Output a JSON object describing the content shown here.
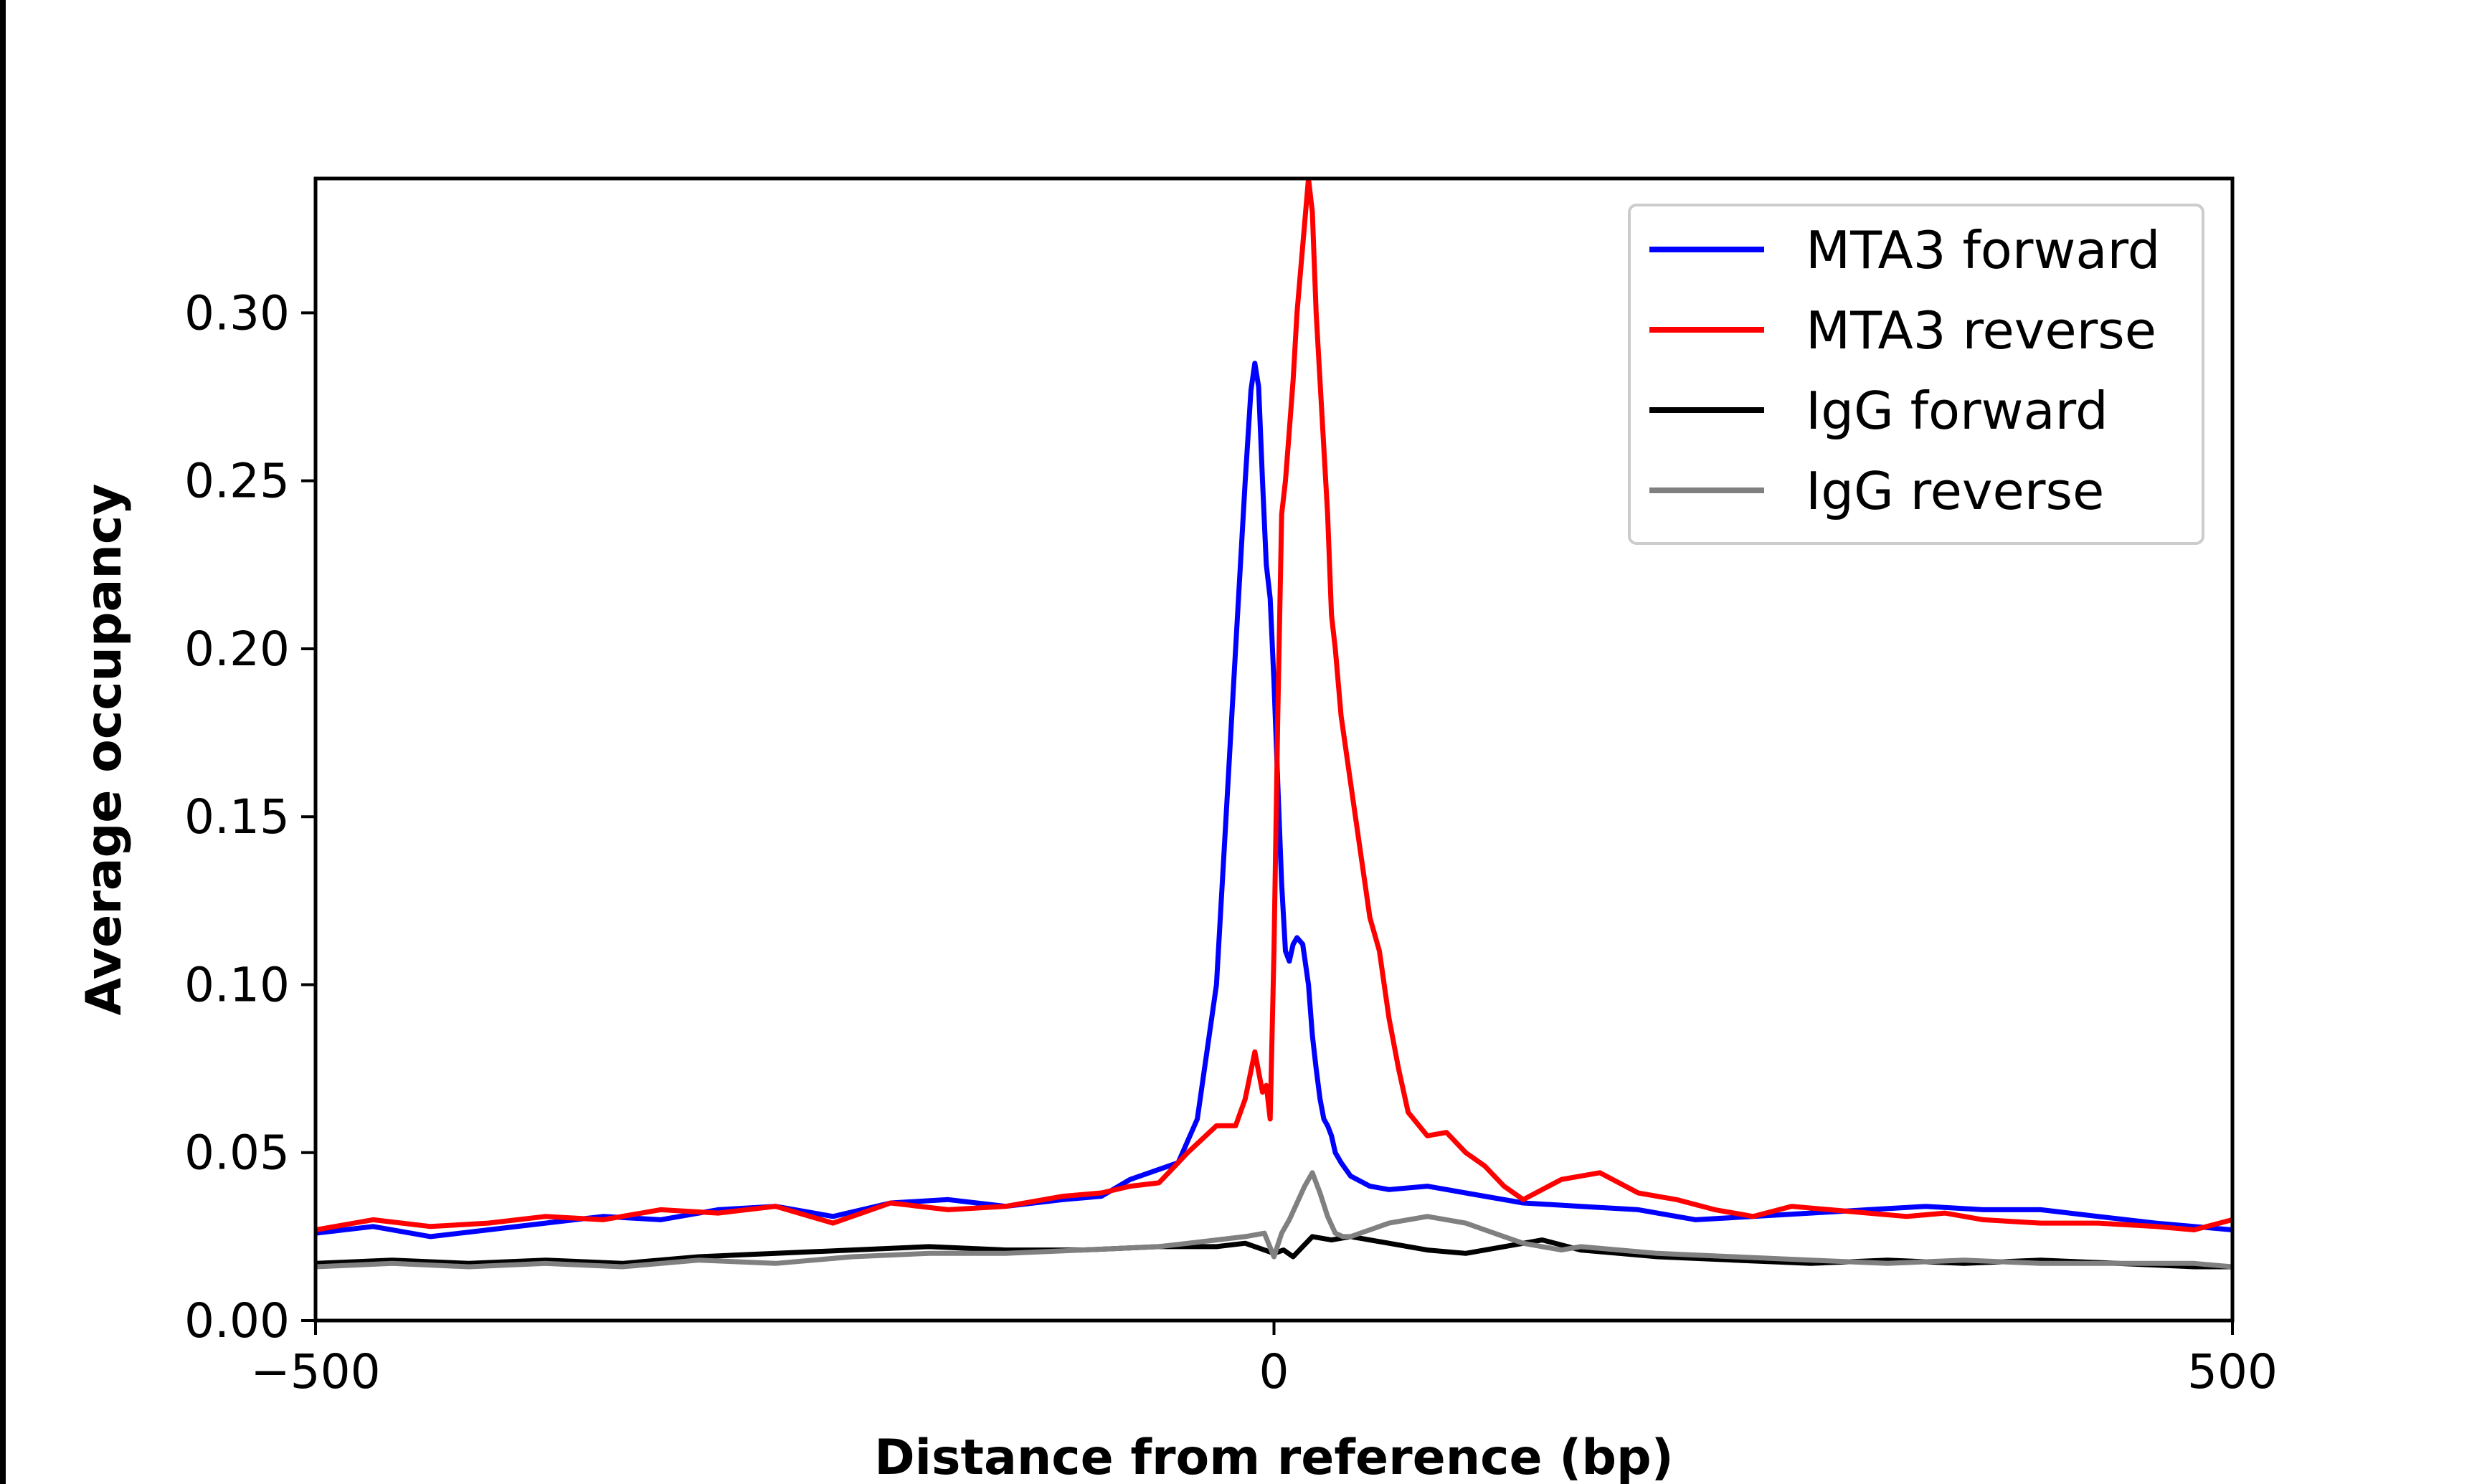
{
  "chart_data": {
    "type": "line",
    "title": "",
    "xlabel": "Distance from reference (bp)",
    "ylabel": "Average occupancy",
    "xlim": [
      -500,
      500
    ],
    "ylim": [
      0,
      0.34
    ],
    "x_ticks": [
      -500,
      0,
      500
    ],
    "x_tick_labels": [
      "−500",
      "0",
      "500"
    ],
    "y_ticks": [
      0.0,
      0.05,
      0.1,
      0.15,
      0.2,
      0.25,
      0.3
    ],
    "y_tick_labels": [
      "0.00",
      "0.05",
      "0.10",
      "0.15",
      "0.20",
      "0.25",
      "0.30"
    ],
    "grid": false,
    "legend_position": "top-right",
    "series": [
      {
        "name": "MTA3 forward",
        "color": "#0000ff",
        "x": [
          -500,
          -470,
          -440,
          -410,
          -380,
          -350,
          -320,
          -290,
          -260,
          -230,
          -200,
          -170,
          -140,
          -110,
          -90,
          -75,
          -60,
          -50,
          -40,
          -30,
          -25,
          -20,
          -15,
          -12,
          -10,
          -8,
          -6,
          -4,
          -2,
          0,
          2,
          4,
          6,
          8,
          10,
          12,
          15,
          18,
          20,
          22,
          24,
          26,
          28,
          30,
          32,
          35,
          40,
          50,
          60,
          80,
          100,
          130,
          160,
          190,
          220,
          250,
          280,
          310,
          340,
          370,
          400,
          430,
          460,
          480,
          500
        ],
        "y": [
          0.026,
          0.028,
          0.025,
          0.027,
          0.029,
          0.031,
          0.03,
          0.033,
          0.034,
          0.031,
          0.035,
          0.036,
          0.034,
          0.036,
          0.037,
          0.042,
          0.045,
          0.047,
          0.06,
          0.1,
          0.15,
          0.2,
          0.25,
          0.277,
          0.285,
          0.278,
          0.25,
          0.225,
          0.215,
          0.19,
          0.16,
          0.13,
          0.11,
          0.107,
          0.112,
          0.114,
          0.112,
          0.1,
          0.085,
          0.075,
          0.066,
          0.06,
          0.058,
          0.055,
          0.05,
          0.047,
          0.043,
          0.04,
          0.039,
          0.04,
          0.038,
          0.035,
          0.034,
          0.033,
          0.03,
          0.031,
          0.032,
          0.033,
          0.034,
          0.033,
          0.033,
          0.031,
          0.029,
          0.028,
          0.027
        ]
      },
      {
        "name": "MTA3 reverse",
        "color": "#ff0000",
        "x": [
          -500,
          -470,
          -440,
          -410,
          -380,
          -350,
          -320,
          -290,
          -260,
          -230,
          -200,
          -170,
          -140,
          -110,
          -90,
          -75,
          -60,
          -45,
          -30,
          -20,
          -15,
          -10,
          -6,
          -4,
          -2,
          0,
          2,
          4,
          6,
          8,
          10,
          12,
          15,
          18,
          20,
          22,
          25,
          28,
          30,
          32,
          35,
          40,
          45,
          50,
          55,
          60,
          65,
          70,
          80,
          90,
          100,
          110,
          120,
          130,
          150,
          170,
          190,
          210,
          230,
          250,
          270,
          290,
          310,
          330,
          350,
          370,
          400,
          430,
          460,
          480,
          500
        ],
        "y": [
          0.027,
          0.03,
          0.028,
          0.029,
          0.031,
          0.03,
          0.033,
          0.032,
          0.034,
          0.029,
          0.035,
          0.033,
          0.034,
          0.037,
          0.038,
          0.04,
          0.041,
          0.05,
          0.058,
          0.058,
          0.066,
          0.08,
          0.068,
          0.07,
          0.06,
          0.11,
          0.18,
          0.24,
          0.25,
          0.265,
          0.28,
          0.3,
          0.32,
          0.34,
          0.33,
          0.3,
          0.27,
          0.24,
          0.21,
          0.2,
          0.18,
          0.16,
          0.14,
          0.12,
          0.11,
          0.09,
          0.075,
          0.062,
          0.055,
          0.056,
          0.05,
          0.046,
          0.04,
          0.036,
          0.042,
          0.044,
          0.038,
          0.036,
          0.033,
          0.031,
          0.034,
          0.033,
          0.032,
          0.031,
          0.032,
          0.03,
          0.029,
          0.029,
          0.028,
          0.027,
          0.03
        ]
      },
      {
        "name": "IgG forward",
        "color": "#000000",
        "x": [
          -500,
          -460,
          -420,
          -380,
          -340,
          -300,
          -260,
          -220,
          -180,
          -140,
          -100,
          -60,
          -30,
          -15,
          -5,
          0,
          5,
          10,
          15,
          20,
          30,
          40,
          60,
          80,
          100,
          120,
          140,
          160,
          180,
          200,
          240,
          280,
          320,
          360,
          400,
          440,
          480,
          500
        ],
        "y": [
          0.017,
          0.018,
          0.017,
          0.018,
          0.017,
          0.019,
          0.02,
          0.021,
          0.022,
          0.021,
          0.021,
          0.022,
          0.022,
          0.023,
          0.021,
          0.02,
          0.021,
          0.019,
          0.022,
          0.025,
          0.024,
          0.025,
          0.023,
          0.021,
          0.02,
          0.022,
          0.024,
          0.021,
          0.02,
          0.019,
          0.018,
          0.017,
          0.018,
          0.017,
          0.018,
          0.017,
          0.016,
          0.016
        ]
      },
      {
        "name": "IgG reverse",
        "color": "#808080",
        "x": [
          -500,
          -460,
          -420,
          -380,
          -340,
          -300,
          -260,
          -220,
          -180,
          -140,
          -100,
          -60,
          -30,
          -15,
          -5,
          0,
          4,
          8,
          12,
          16,
          20,
          24,
          28,
          32,
          36,
          40,
          50,
          60,
          70,
          80,
          90,
          100,
          110,
          120,
          130,
          140,
          150,
          160,
          180,
          200,
          240,
          280,
          320,
          360,
          400,
          440,
          480,
          500
        ],
        "y": [
          0.016,
          0.017,
          0.016,
          0.017,
          0.016,
          0.018,
          0.017,
          0.019,
          0.02,
          0.02,
          0.021,
          0.022,
          0.024,
          0.025,
          0.026,
          0.019,
          0.026,
          0.03,
          0.035,
          0.04,
          0.044,
          0.038,
          0.031,
          0.026,
          0.025,
          0.025,
          0.027,
          0.029,
          0.03,
          0.031,
          0.03,
          0.029,
          0.027,
          0.025,
          0.023,
          0.022,
          0.021,
          0.022,
          0.021,
          0.02,
          0.019,
          0.018,
          0.017,
          0.018,
          0.017,
          0.017,
          0.017,
          0.016
        ]
      }
    ]
  }
}
